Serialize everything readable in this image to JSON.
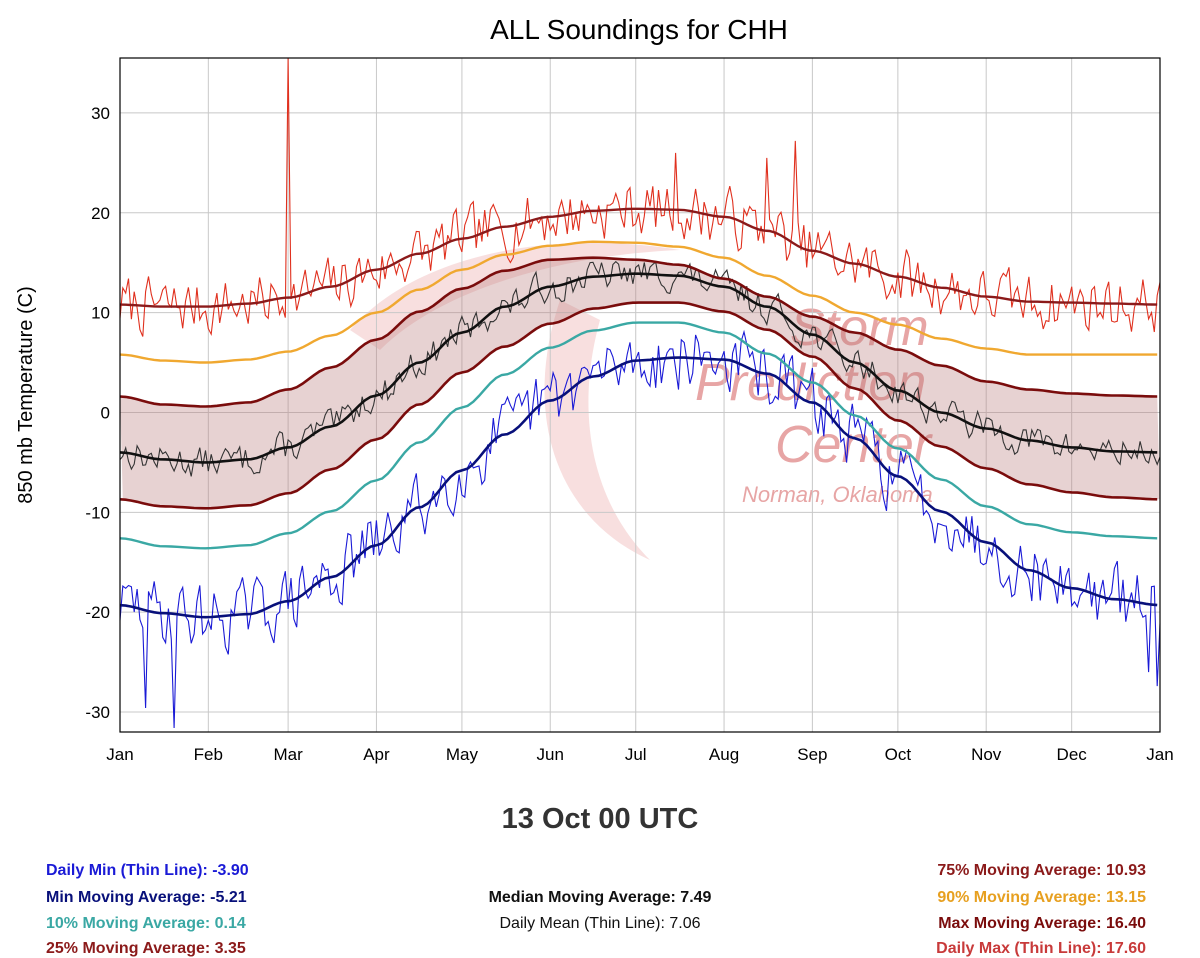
{
  "chart_data": {
    "type": "line",
    "title": "ALL Soundings for CHH",
    "ylabel": "850 mb Temperature (C)",
    "xlabel": "",
    "x_ticks": [
      "Jan",
      "Feb",
      "Mar",
      "Apr",
      "May",
      "Jun",
      "Jul",
      "Aug",
      "Sep",
      "Oct",
      "Nov",
      "Dec",
      "Jan"
    ],
    "y_ticks": [
      30,
      20,
      10,
      0,
      -10,
      -20,
      -30
    ],
    "xlim": [
      1,
      366
    ],
    "ylim": [
      -32,
      35.5
    ],
    "grid": true,
    "watermark": {
      "lines": [
        "Storm",
        "Prediction",
        "Center"
      ],
      "sub": "Norman, Oklahoma"
    },
    "days": [
      1,
      16,
      31,
      46,
      60,
      75,
      91,
      106,
      121,
      136,
      152,
      167,
      182,
      197,
      213,
      228,
      244,
      259,
      274,
      289,
      305,
      320,
      335,
      350,
      366
    ],
    "series": [
      {
        "key": "max_avg",
        "color": "#8b1a1a",
        "width": 2.4,
        "values": [
          10.8,
          10.6,
          10.6,
          10.9,
          11.5,
          12.6,
          14.3,
          15.9,
          17.4,
          18.6,
          19.6,
          20.2,
          20.4,
          20.3,
          19.6,
          18.2,
          16.2,
          14.9,
          13.6,
          12.5,
          11.6,
          11.1,
          11.0,
          10.9,
          10.8
        ]
      },
      {
        "key": "p90_avg",
        "color": "#f0a830",
        "width": 2.4,
        "values": [
          5.8,
          5.2,
          5.0,
          5.3,
          6.1,
          7.7,
          10.0,
          12.3,
          14.3,
          15.8,
          16.7,
          17.1,
          17.0,
          16.6,
          15.5,
          13.7,
          11.7,
          10.0,
          8.8,
          7.4,
          6.4,
          5.8,
          5.8,
          5.8,
          5.8
        ]
      },
      {
        "key": "p75_avg",
        "color": "#7a0c0c",
        "width": 2.6,
        "values": [
          1.6,
          0.8,
          0.6,
          1.0,
          2.3,
          4.5,
          7.3,
          10.1,
          12.4,
          14.2,
          15.3,
          15.5,
          15.3,
          14.8,
          13.4,
          11.6,
          9.6,
          8.0,
          6.3,
          4.7,
          3.1,
          2.3,
          1.9,
          1.7,
          1.6
        ]
      },
      {
        "key": "median_avg",
        "color": "#111111",
        "width": 2.6,
        "values": [
          -4.0,
          -4.7,
          -5.0,
          -4.7,
          -3.5,
          -1.4,
          1.7,
          5.0,
          8.0,
          10.6,
          12.6,
          13.6,
          13.9,
          13.7,
          12.6,
          10.6,
          7.8,
          5.0,
          2.2,
          0.0,
          -1.6,
          -2.8,
          -3.5,
          -3.9,
          -4.0
        ]
      },
      {
        "key": "p25_avg",
        "color": "#7a0c0c",
        "width": 2.6,
        "values": [
          -8.7,
          -9.4,
          -9.6,
          -9.3,
          -8.1,
          -5.7,
          -2.7,
          0.8,
          4.0,
          6.6,
          8.9,
          10.4,
          11.0,
          11.0,
          10.1,
          8.3,
          5.6,
          2.4,
          -0.8,
          -3.4,
          -5.6,
          -7.2,
          -8.0,
          -8.5,
          -8.7
        ]
      },
      {
        "key": "p10_avg",
        "color": "#3aa8a4",
        "width": 2.4,
        "values": [
          -12.6,
          -13.4,
          -13.6,
          -13.3,
          -12.1,
          -9.9,
          -6.8,
          -3.0,
          0.5,
          3.8,
          6.5,
          8.2,
          9.0,
          9.0,
          8.0,
          5.9,
          3.0,
          -0.3,
          -3.6,
          -6.7,
          -9.4,
          -11.2,
          -12.0,
          -12.4,
          -12.6
        ]
      },
      {
        "key": "min_avg",
        "color": "#08107a",
        "width": 2.6,
        "values": [
          -19.3,
          -20.1,
          -20.5,
          -20.2,
          -18.9,
          -16.5,
          -13.3,
          -9.5,
          -5.8,
          -2.2,
          1.2,
          3.6,
          5.2,
          5.5,
          5.3,
          3.9,
          1.0,
          -2.6,
          -6.4,
          -9.9,
          -13.0,
          -15.8,
          -17.6,
          -18.7,
          -19.3
        ]
      }
    ],
    "band_between": [
      "p75_avg",
      "p25_avg"
    ],
    "band_color": "#b97e7e",
    "daily_thin": [
      {
        "key": "daily_max",
        "color": "#e0301e",
        "width": 1.1,
        "follows": "max_avg",
        "amp": 2.6,
        "seed": 7,
        "spikes": [
          [
            60,
            35.5
          ],
          [
            238,
            27.2
          ],
          [
            228,
            25.5
          ],
          [
            196,
            26.0
          ]
        ]
      },
      {
        "key": "daily_mean",
        "color": "#333333",
        "width": 1.1,
        "follows": "median_avg",
        "amp": 1.4,
        "seed": 13,
        "spikes": []
      },
      {
        "key": "daily_min",
        "color": "#1a1ad6",
        "width": 1.1,
        "follows": "min_avg",
        "amp": 3.0,
        "seed": 29,
        "spikes": [
          [
            20,
            -31.6
          ],
          [
            365,
            -27.4
          ],
          [
            362,
            -26.0
          ],
          [
            10,
            -29.6
          ]
        ]
      }
    ]
  },
  "timestamp": "13 Oct 00 UTC",
  "stats": {
    "daily_min": {
      "label": "Daily Min (Thin Line): -3.90",
      "color": "#1a1ad6"
    },
    "min_avg": {
      "label": "Min Moving Average: -5.21",
      "color": "#08107a"
    },
    "p10_avg": {
      "label": "10% Moving Average: 0.14",
      "color": "#3aa8a4"
    },
    "p25_cut": {
      "label": "25% Moving Average: 3.35",
      "color": "#8b1a1a"
    },
    "median_avg": {
      "label": "Median Moving Average: 7.49"
    },
    "daily_mean": {
      "label": "Daily Mean (Thin Line): 7.06"
    },
    "p75_avg": {
      "label": "75% Moving Average: 10.93",
      "color": "#8b1a1a"
    },
    "p90_avg": {
      "label": "90% Moving Average: 13.15",
      "color": "#e7a020"
    },
    "max_avg": {
      "label": "Max Moving Average: 16.40",
      "color": "#7a0c0c"
    },
    "daily_max_cut": {
      "label": "Daily Max (Thin Line): 17.60",
      "color": "#c83a3a"
    }
  }
}
